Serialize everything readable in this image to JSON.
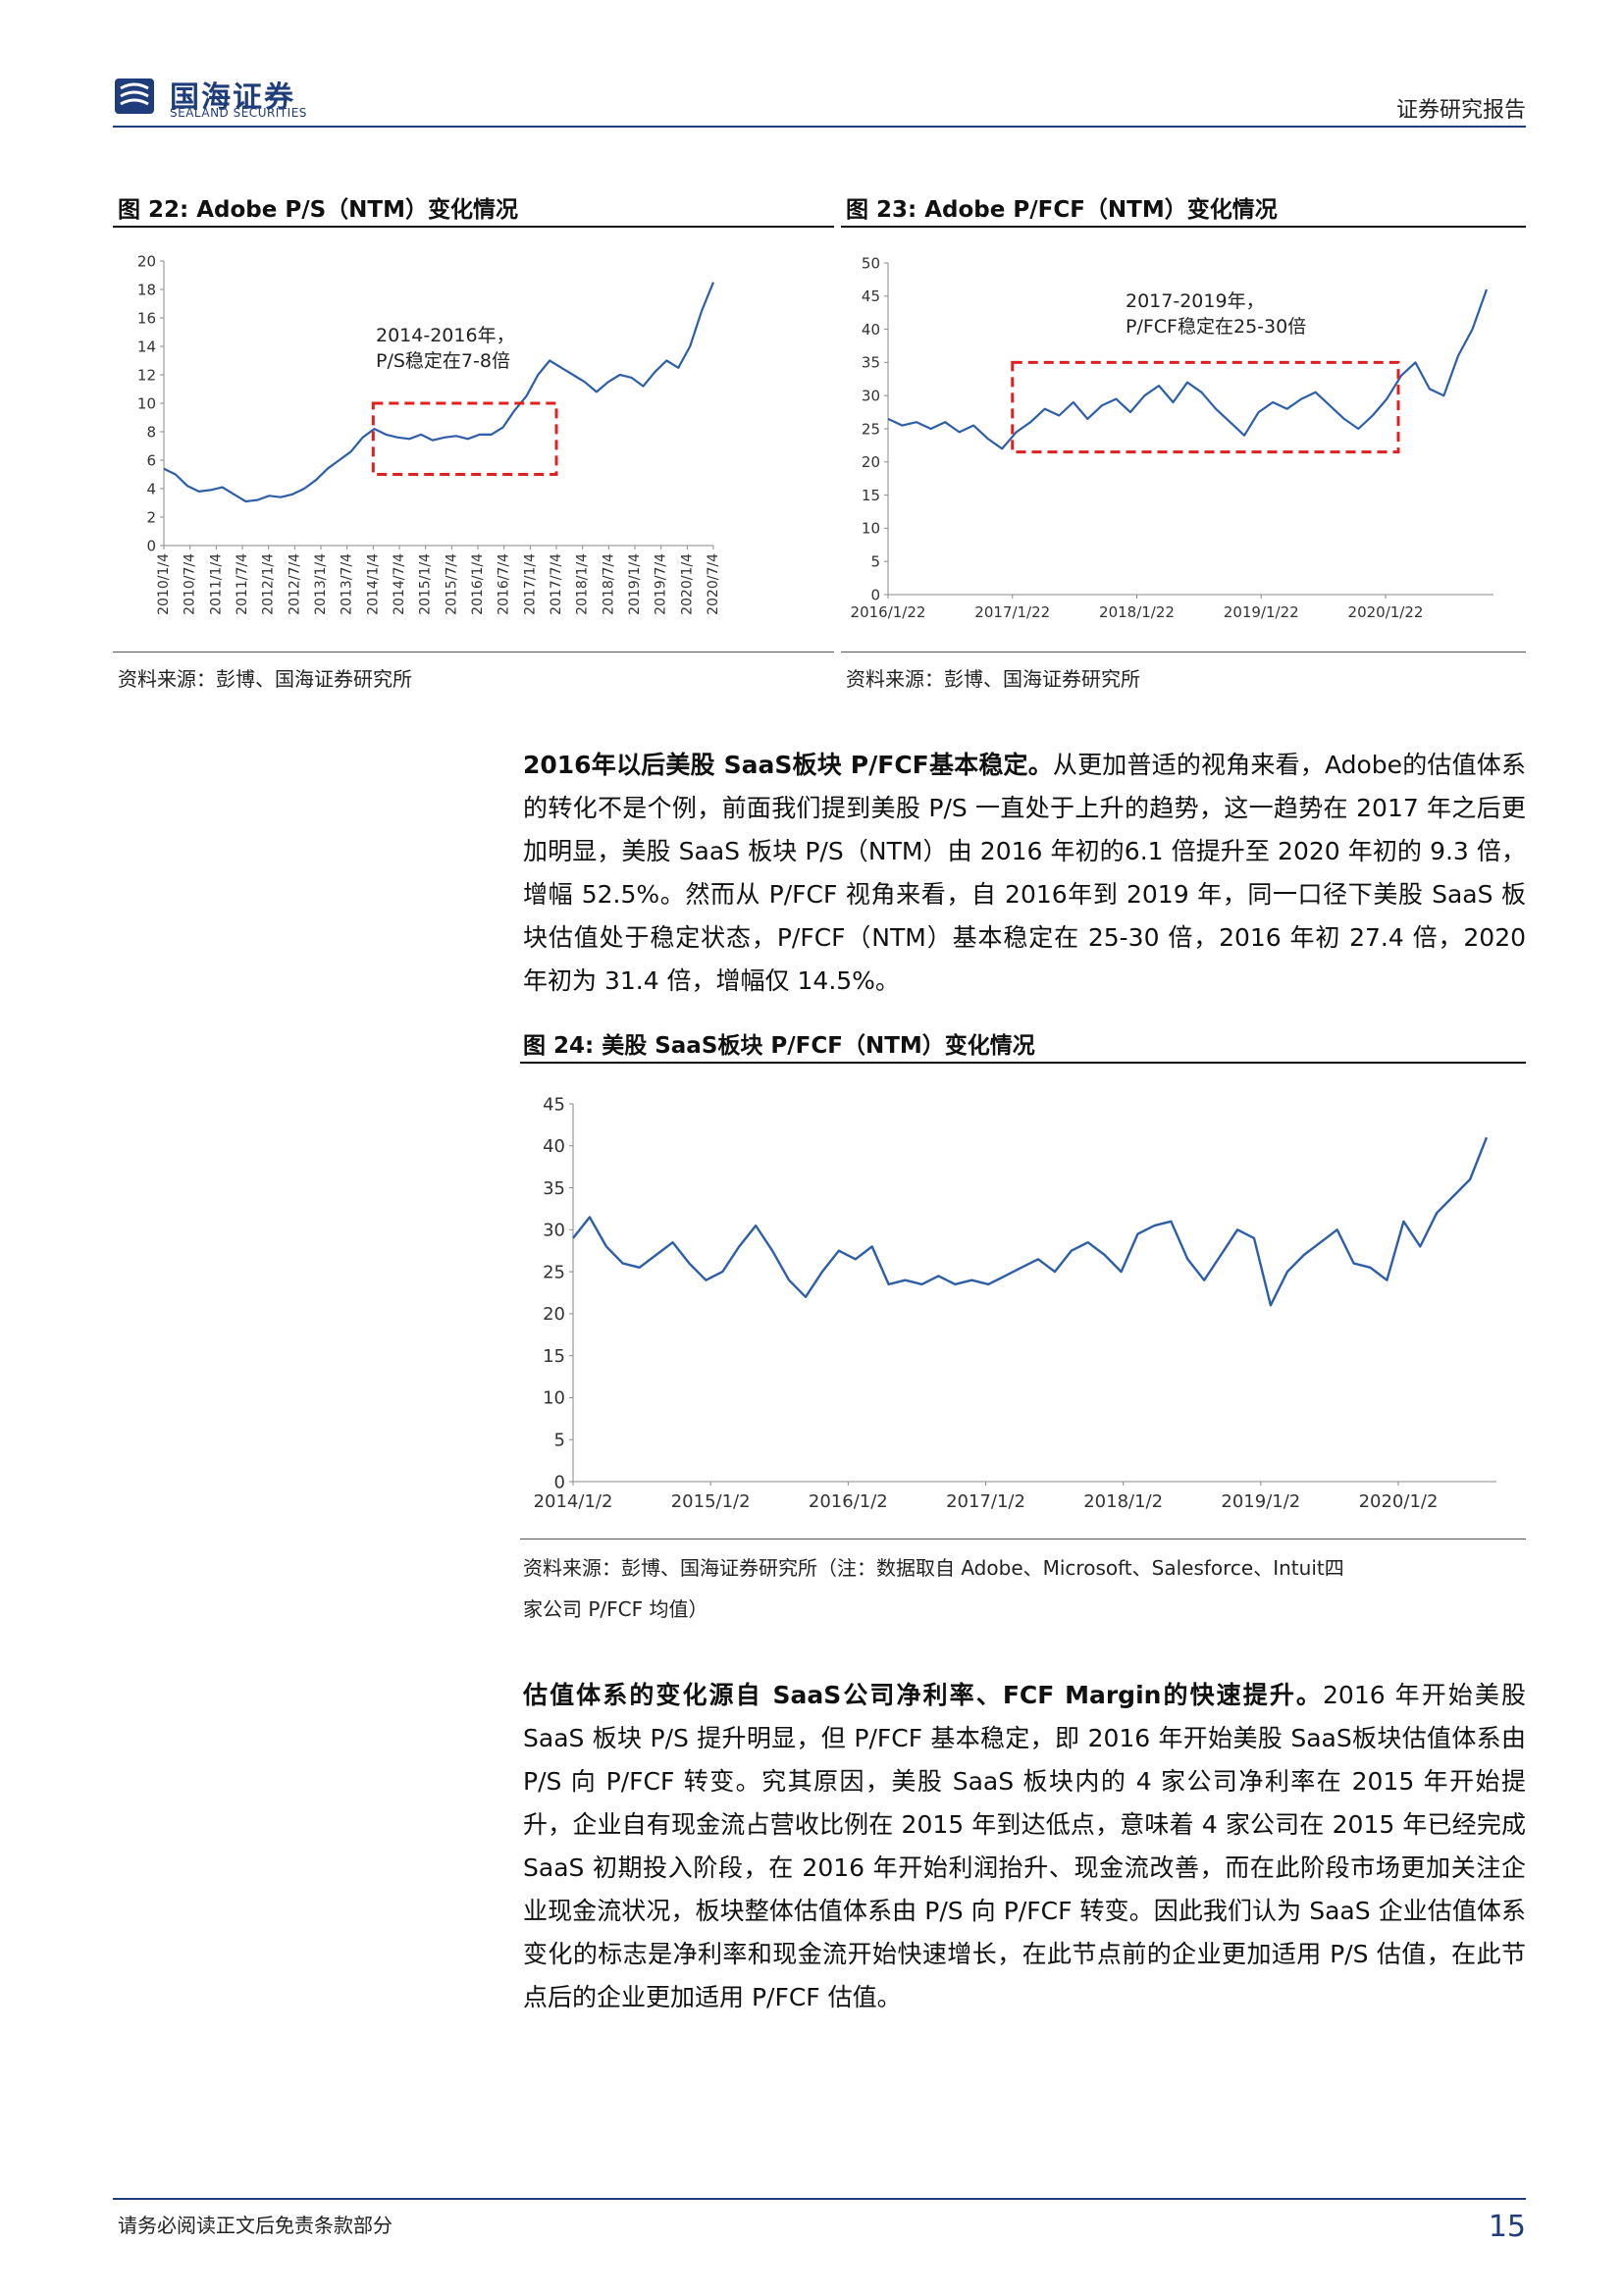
{
  "header": {
    "company_cn": "国海证券",
    "company_en": "SEALAND SECURITIES",
    "report_type": "证券研究报告"
  },
  "figures": [
    {
      "title": "图 22:  Adobe P/S（NTM）变化情况",
      "annotation": [
        "2014-2016年，",
        "P/S稳定在7-8倍"
      ],
      "source": "资料来源：彭博、国海证券研究所"
    },
    {
      "title": "图 23:  Adobe P/FCF（NTM）变化情况",
      "annotation": [
        "2017-2019年，",
        "P/FCF稳定在25-30倍"
      ],
      "source": "资料来源：彭博、国海证券研究所"
    },
    {
      "title": "图 24:  美股 SaaS板块 P/FCF（NTM）变化情况",
      "source_lines": [
        "资料来源：彭博、国海证券研究所（注：数据取自 Adobe、Microsoft、Salesforce、Intuit四",
        "家公司 P/FCF 均值）"
      ]
    }
  ],
  "paragraphs": [
    {
      "lead": "2016年以后美股 SaaS板块 P/FCF基本稳定。",
      "text": "从更加普适的视角来看，Adobe的估值体系的转化不是个例，前面我们提到美股 P/S 一直处于上升的趋势，这一趋势在 2017 年之后更加明显，美股 SaaS 板块 P/S（NTM）由 2016 年初的6.1 倍提升至 2020 年初的 9.3 倍，增幅 52.5%。然而从 P/FCF 视角来看，自 2016年到 2019 年，同一口径下美股 SaaS 板块估值处于稳定状态，P/FCF（NTM）基本稳定在 25-30 倍，2016 年初 27.4 倍，2020 年初为 31.4 倍，增幅仅 14.5%。"
    },
    {
      "lead": "估值体系的变化源自 SaaS公司净利率、FCF Margin的快速提升。",
      "text": "2016 年开始美股 SaaS 板块 P/S 提升明显，但 P/FCF 基本稳定，即 2016 年开始美股 SaaS板块估值体系由 P/S 向 P/FCF 转变。究其原因，美股 SaaS 板块内的 4 家公司净利率在 2015 年开始提升，企业自有现金流占营收比例在 2015 年到达低点，意味着 4 家公司在 2015 年已经完成 SaaS 初期投入阶段，在 2016 年开始利润抬升、现金流改善，而在此阶段市场更加关注企业现金流状况，板块整体估值体系由 P/S 向 P/FCF 转变。因此我们认为 SaaS 企业估值体系变化的标志是净利率和现金流开始快速增长，在此节点前的企业更加适用 P/S 估值，在此节点后的企业更加适用 P/FCF 估值。"
    }
  ],
  "footer": {
    "disclaimer": "请务必阅读正文后免责条款部分",
    "page_number": "15"
  },
  "chart_data": [
    {
      "type": "line",
      "title": "Adobe P/S（NTM）变化情况",
      "x_tick_labels": [
        "2010/1/4",
        "2010/7/4",
        "2011/1/4",
        "2011/7/4",
        "2012/1/4",
        "2012/7/4",
        "2013/1/4",
        "2013/7/4",
        "2014/1/4",
        "2014/7/4",
        "2015/1/4",
        "2015/7/4",
        "2016/1/4",
        "2016/7/4",
        "2017/1/4",
        "2017/7/4",
        "2018/1/4",
        "2018/7/4",
        "2019/1/4",
        "2019/7/4",
        "2020/1/4",
        "2020/7/4"
      ],
      "y_ticks": [
        0,
        2,
        4,
        6,
        8,
        10,
        12,
        14,
        16,
        18,
        20
      ],
      "ylim": [
        0,
        20
      ],
      "series": [
        {
          "color": "#2e5fa6",
          "values": [
            5.4,
            5.0,
            4.2,
            3.8,
            3.9,
            4.1,
            3.6,
            3.1,
            3.2,
            3.5,
            3.4,
            3.6,
            4.0,
            4.6,
            5.4,
            6.0,
            6.6,
            7.6,
            8.2,
            7.8,
            7.6,
            7.5,
            7.8,
            7.4,
            7.6,
            7.7,
            7.5,
            7.8,
            7.8,
            8.3,
            9.5,
            10.5,
            12.0,
            13.0,
            12.5,
            12.0,
            11.5,
            10.8,
            11.5,
            12.0,
            11.8,
            11.2,
            12.2,
            13.0,
            12.5,
            14.0,
            16.5,
            18.5
          ]
        }
      ],
      "highlight": {
        "x_range": [
          "2014/1/4",
          "2017/7/4"
        ],
        "y_range": [
          5,
          10
        ],
        "style": "red-dashed"
      },
      "annotation": "2014-2016年，P/S稳定在7-8倍"
    },
    {
      "type": "line",
      "title": "Adobe P/FCF（NTM）变化情况",
      "x_tick_labels": [
        "2016/1/22",
        "2017/1/22",
        "2018/1/22",
        "2019/1/22",
        "2020/1/22"
      ],
      "y_ticks": [
        0,
        5,
        10,
        15,
        20,
        25,
        30,
        35,
        40,
        45,
        50
      ],
      "ylim": [
        0,
        50
      ],
      "series": [
        {
          "color": "#2e5fa6",
          "values": [
            26.5,
            25.5,
            26.0,
            25.0,
            26.0,
            24.5,
            25.5,
            23.5,
            22.0,
            24.5,
            26.0,
            28.0,
            27.0,
            29.0,
            26.5,
            28.5,
            29.5,
            27.5,
            30.0,
            31.5,
            29.0,
            32.0,
            30.5,
            28.0,
            26.0,
            24.0,
            27.5,
            29.0,
            28.0,
            29.5,
            30.5,
            28.5,
            26.5,
            25.0,
            27.0,
            29.5,
            33.0,
            35.0,
            31.0,
            30.0,
            36.0,
            40.0,
            46.0
          ]
        }
      ],
      "highlight": {
        "x_range": [
          "2017/1/22",
          "2020/3/1"
        ],
        "y_range": [
          21.5,
          35
        ],
        "style": "red-dashed"
      },
      "annotation": "2017-2019年，P/FCF稳定在25-30倍"
    },
    {
      "type": "line",
      "title": "美股 SaaS板块 P/FCF（NTM）变化情况",
      "x_tick_labels": [
        "2014/1/2",
        "2015/1/2",
        "2016/1/2",
        "2017/1/2",
        "2018/1/2",
        "2019/1/2",
        "2020/1/2"
      ],
      "y_ticks": [
        0,
        5,
        10,
        15,
        20,
        25,
        30,
        35,
        40,
        45
      ],
      "ylim": [
        0,
        45
      ],
      "series": [
        {
          "color": "#2e5fa6",
          "values": [
            29.0,
            31.5,
            28.0,
            26.0,
            25.5,
            27.0,
            28.5,
            26.0,
            24.0,
            25.0,
            28.0,
            30.5,
            27.5,
            24.0,
            22.0,
            25.0,
            27.5,
            26.5,
            28.0,
            23.5,
            24.0,
            23.5,
            24.5,
            23.5,
            24.0,
            23.5,
            24.5,
            25.5,
            26.5,
            25.0,
            27.5,
            28.5,
            27.0,
            25.0,
            29.5,
            30.5,
            31.0,
            26.5,
            24.0,
            27.0,
            30.0,
            29.0,
            21.0,
            25.0,
            27.0,
            28.5,
            30.0,
            26.0,
            25.5,
            24.0,
            31.0,
            28.0,
            32.0,
            34.0,
            36.0,
            41.0
          ]
        }
      ]
    }
  ]
}
